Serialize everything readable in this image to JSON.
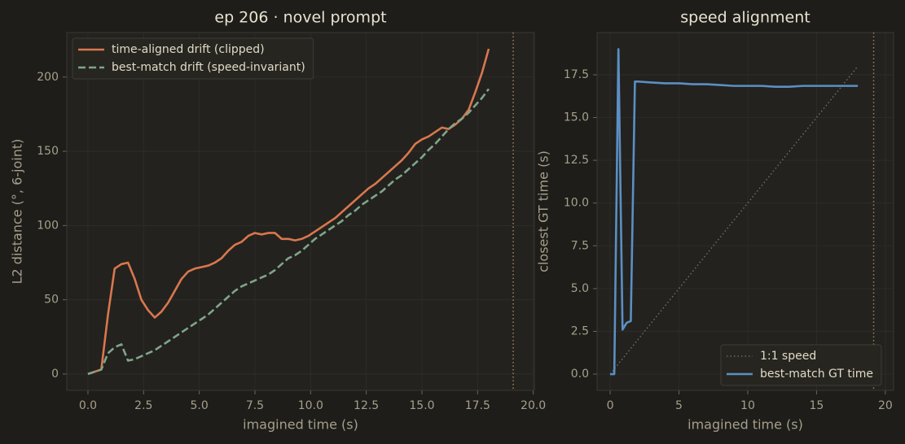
{
  "chart_data": [
    {
      "type": "line",
      "title": "ep 206 · novel prompt",
      "xlabel": "imagined time (s)",
      "ylabel": "L2 distance  (°, 6-joint)",
      "x": [
        0,
        0.6,
        0.9,
        1.2,
        1.5,
        1.8,
        2.1,
        2.4,
        2.7,
        3.0,
        3.3,
        3.6,
        3.9,
        4.2,
        4.5,
        4.8,
        5.1,
        5.4,
        5.7,
        6.0,
        6.3,
        6.6,
        6.9,
        7.2,
        7.5,
        7.8,
        8.1,
        8.4,
        8.7,
        9.0,
        9.3,
        9.6,
        9.9,
        10.2,
        10.5,
        10.8,
        11.1,
        11.4,
        11.7,
        12.0,
        12.3,
        12.6,
        12.9,
        13.2,
        13.5,
        13.8,
        14.1,
        14.4,
        14.7,
        15.0,
        15.3,
        15.6,
        15.9,
        16.2,
        16.5,
        16.8,
        17.1,
        17.4,
        17.7,
        18.0
      ],
      "series": [
        {
          "name": "time-aligned drift (clipped)",
          "color": "#d9774f",
          "dash": "solid",
          "values": [
            0,
            3,
            40,
            71,
            74,
            75,
            64,
            50,
            43,
            38,
            42,
            48,
            56,
            64,
            69,
            71,
            72,
            73,
            75,
            78,
            83,
            87,
            89,
            93,
            95,
            94,
            95,
            95,
            91,
            91,
            90,
            91,
            93,
            96,
            99,
            102,
            105,
            109,
            113,
            117,
            121,
            125,
            128,
            132,
            136,
            140,
            144,
            149,
            155,
            158,
            160,
            163,
            166,
            165,
            168,
            172,
            178,
            190,
            203,
            219
          ]
        },
        {
          "name": "best-match drift (speed-invariant)",
          "color": "#7fa58a",
          "dash": "dashed",
          "values": [
            0,
            3,
            14,
            18,
            20,
            9,
            10,
            12,
            14,
            16,
            19,
            22,
            25,
            28,
            31,
            34,
            37,
            40,
            44,
            48,
            52,
            56,
            59,
            61,
            63,
            65,
            67,
            70,
            74,
            78,
            80,
            83,
            87,
            91,
            94,
            97,
            100,
            103,
            107,
            110,
            114,
            117,
            120,
            123,
            127,
            131,
            134,
            138,
            142,
            146,
            151,
            155,
            160,
            165,
            169,
            172,
            176,
            181,
            186,
            192
          ]
        }
      ],
      "vline": 19.1,
      "vline_color": "#a7805c",
      "xlim": [
        -0.95,
        20.05
      ],
      "ylim": [
        -11,
        230
      ],
      "xticks": [
        {
          "value": 0,
          "label": "0.0"
        },
        {
          "value": 2.5,
          "label": "2.5"
        },
        {
          "value": 5,
          "label": "5.0"
        },
        {
          "value": 7.5,
          "label": "7.5"
        },
        {
          "value": 10,
          "label": "10.0"
        },
        {
          "value": 12.5,
          "label": "12.5"
        },
        {
          "value": 15,
          "label": "15.0"
        },
        {
          "value": 17.5,
          "label": "17.5"
        },
        {
          "value": 20,
          "label": "20.0"
        }
      ],
      "yticks": [
        0,
        50,
        100,
        150,
        200
      ],
      "grid": true,
      "legend": "upper left"
    },
    {
      "type": "line",
      "title": "speed alignment",
      "xlabel": "imagined time (s)",
      "ylabel": "closest GT time (s)",
      "series": [
        {
          "name": "1:1 speed",
          "color": "#7a766b",
          "dash": "dotted",
          "x": [
            0,
            18
          ],
          "values": [
            0,
            18
          ]
        },
        {
          "name": "best-match GT time",
          "color": "#5b8fc4",
          "dash": "solid",
          "x": [
            0,
            0.3,
            0.6,
            0.9,
            1.2,
            1.5,
            1.8,
            2.1,
            3,
            4,
            5,
            6,
            7,
            8,
            9,
            10,
            11,
            12,
            13,
            14,
            15,
            16,
            17,
            18
          ],
          "values": [
            0,
            0,
            19.0,
            2.6,
            3.0,
            3.1,
            17.1,
            17.1,
            17.05,
            17.0,
            17.0,
            16.95,
            16.95,
            16.9,
            16.85,
            16.85,
            16.85,
            16.8,
            16.8,
            16.85,
            16.85,
            16.85,
            16.85,
            16.85
          ]
        }
      ],
      "vline": 19.15,
      "vline_color": "#a7805c",
      "xlim": [
        -0.95,
        20.6
      ],
      "ylim": [
        -0.95,
        19.97
      ],
      "xticks": [
        0,
        5,
        10,
        15,
        20
      ],
      "yticks": [
        {
          "value": 0,
          "label": "0.0"
        },
        {
          "value": 2.5,
          "label": "2.5"
        },
        {
          "value": 5,
          "label": "5.0"
        },
        {
          "value": 7.5,
          "label": "7.5"
        },
        {
          "value": 10,
          "label": "10.0"
        },
        {
          "value": 12.5,
          "label": "12.5"
        },
        {
          "value": 15,
          "label": "15.0"
        },
        {
          "value": 17.5,
          "label": "17.5"
        }
      ],
      "grid": true,
      "legend": "lower right"
    }
  ]
}
